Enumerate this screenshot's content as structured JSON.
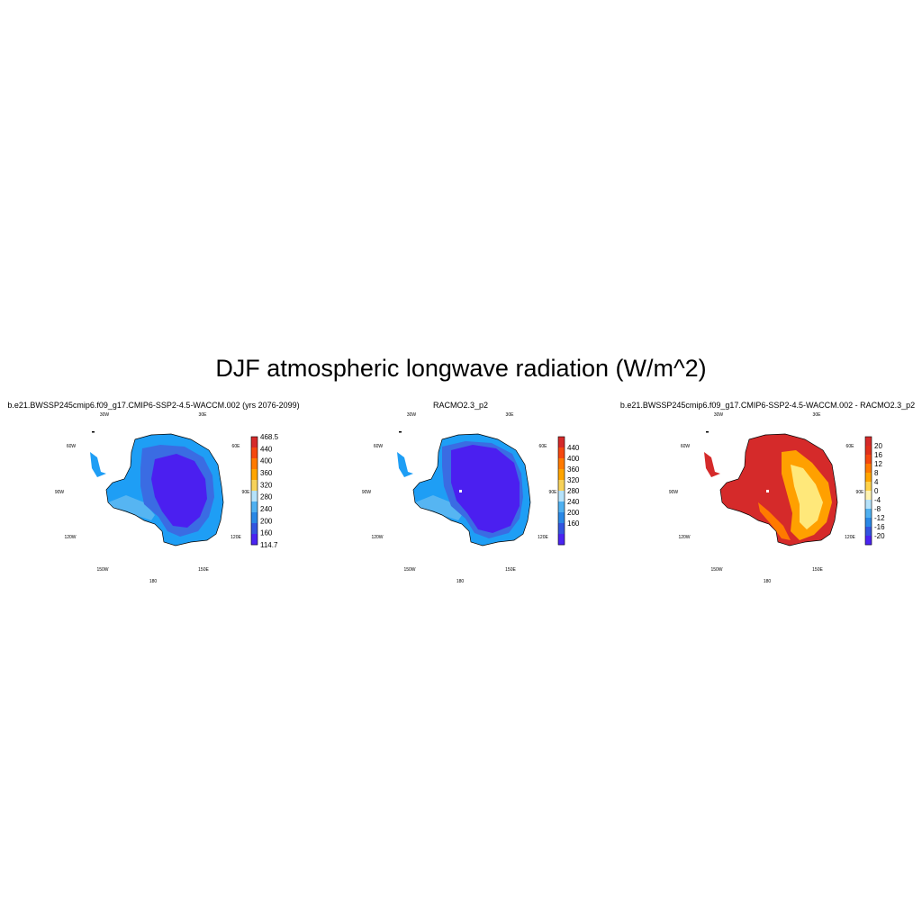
{
  "title": "DJF atmospheric longwave radiation (W/m^2)",
  "panels": [
    {
      "id": "model",
      "title": "b.e21.BWSSP245cmip6.f09_g17.CMIP6-SSP2-4.5-WACCM.002 (yrs 2076-2099)",
      "colorbar_labels": [
        "468.5",
        "440",
        "400",
        "360",
        "320",
        "280",
        "240",
        "200",
        "160",
        "114.7"
      ],
      "colorbar_colors": [
        "#d52a2a",
        "#f5480f",
        "#ff7a00",
        "#ffa500",
        "#f7d25a",
        "#b5e2fa",
        "#4fb0f0",
        "#2a88e6",
        "#3355e0",
        "#4a24f2"
      ],
      "land_colors": {
        "outer": "#1e9ef5",
        "mid": "#3a6ce3",
        "inner": "#4b1ff0",
        "ross": "#56b5f2"
      }
    },
    {
      "id": "racmo",
      "title": "RACMO2.3_p2",
      "colorbar_labels": [
        "440",
        "400",
        "360",
        "320",
        "280",
        "240",
        "200",
        "160"
      ],
      "colorbar_colors": [
        "#d52a2a",
        "#f5480f",
        "#ff7a00",
        "#ffa500",
        "#f7d25a",
        "#b5e2fa",
        "#4fb0f0",
        "#2a88e6",
        "#3355e0",
        "#4a24f2"
      ],
      "land_colors": {
        "outer": "#1e9ef5",
        "mid": "#3a6ce3",
        "inner": "#4b1ff0",
        "ross": "#56b5f2"
      }
    },
    {
      "id": "diff",
      "title": "b.e21.BWSSP245cmip6.f09_g17.CMIP6-SSP2-4.5-WACCM.002 - RACMO2.3_p2",
      "colorbar_labels": [
        "20",
        "16",
        "12",
        "8",
        "4",
        "0",
        "-4",
        "-8",
        "-12",
        "-16",
        "-20"
      ],
      "colorbar_colors": [
        "#d52a2a",
        "#e0301c",
        "#f5480f",
        "#ff7a00",
        "#ffa500",
        "#ffd24a",
        "#fff3b0",
        "#b5e2fa",
        "#4fb0f0",
        "#2a88e6",
        "#3355e0",
        "#4a24f2"
      ],
      "land_colors": {
        "outer": "#d52a2a",
        "mid": "#ffa000",
        "inner": "#ffe87a",
        "ross": "#ff7a00"
      }
    }
  ],
  "longitude_labels": {
    "w30": "30W",
    "e30": "30E",
    "w60": "60W",
    "e60": "60E",
    "w90": "90W",
    "e90": "90E",
    "w120": "120W",
    "e120": "120E",
    "w150": "150W",
    "e150": "150E",
    "s180": "180"
  }
}
